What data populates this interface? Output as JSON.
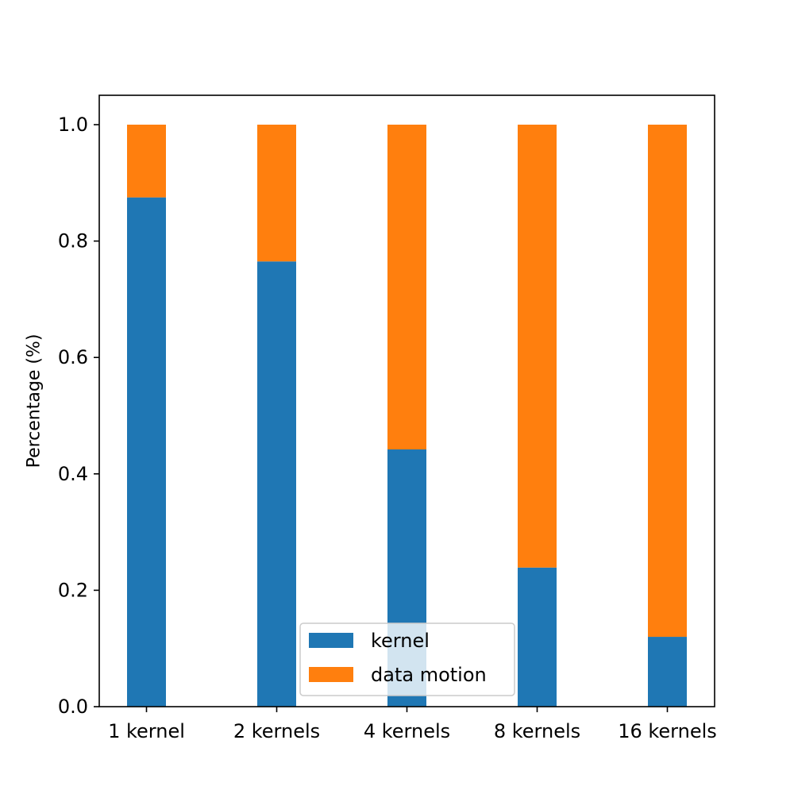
{
  "chart_data": {
    "type": "bar",
    "stacked": true,
    "categories": [
      "1 kernel",
      "2 kernels",
      "4 kernels",
      "8 kernels",
      "16 kernels"
    ],
    "series": [
      {
        "name": "kernel",
        "color": "#1f77b4",
        "values": [
          0.875,
          0.765,
          0.442,
          0.239,
          0.12
        ]
      },
      {
        "name": "data motion",
        "color": "#ff7f0e",
        "values": [
          0.125,
          0.235,
          0.558,
          0.761,
          0.88
        ]
      }
    ],
    "title": "",
    "xlabel": "",
    "ylabel": "Percentage (%)",
    "ylim": [
      0,
      1.05
    ],
    "yticks": [
      "0.0",
      "0.2",
      "0.4",
      "0.6",
      "0.8",
      "1.0"
    ],
    "grid": false,
    "legend_position": "lower center"
  }
}
